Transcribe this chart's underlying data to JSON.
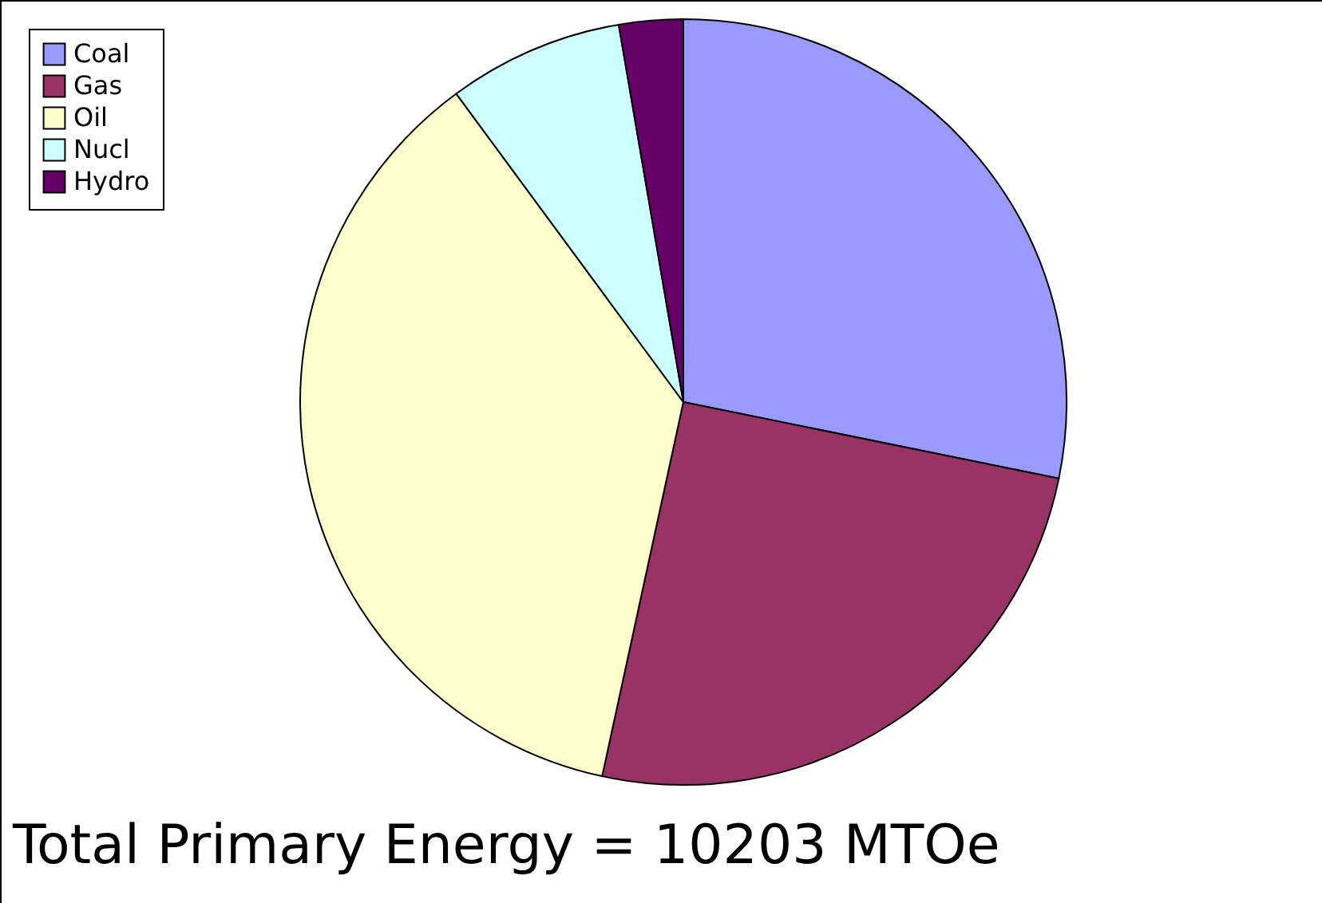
{
  "chart_data": {
    "type": "pie",
    "categories": [
      "Coal",
      "Gas",
      "Oil",
      "Nucl",
      "Hydro"
    ],
    "values": [
      28.2,
      25.2,
      36.5,
      7.4,
      2.7
    ],
    "colors": [
      "#9999ff",
      "#993366",
      "#ffffcc",
      "#ccffff",
      "#660066"
    ],
    "legend": "top left",
    "annotations": [
      "Total Primary Energy = 10203 MTOe"
    ]
  }
}
